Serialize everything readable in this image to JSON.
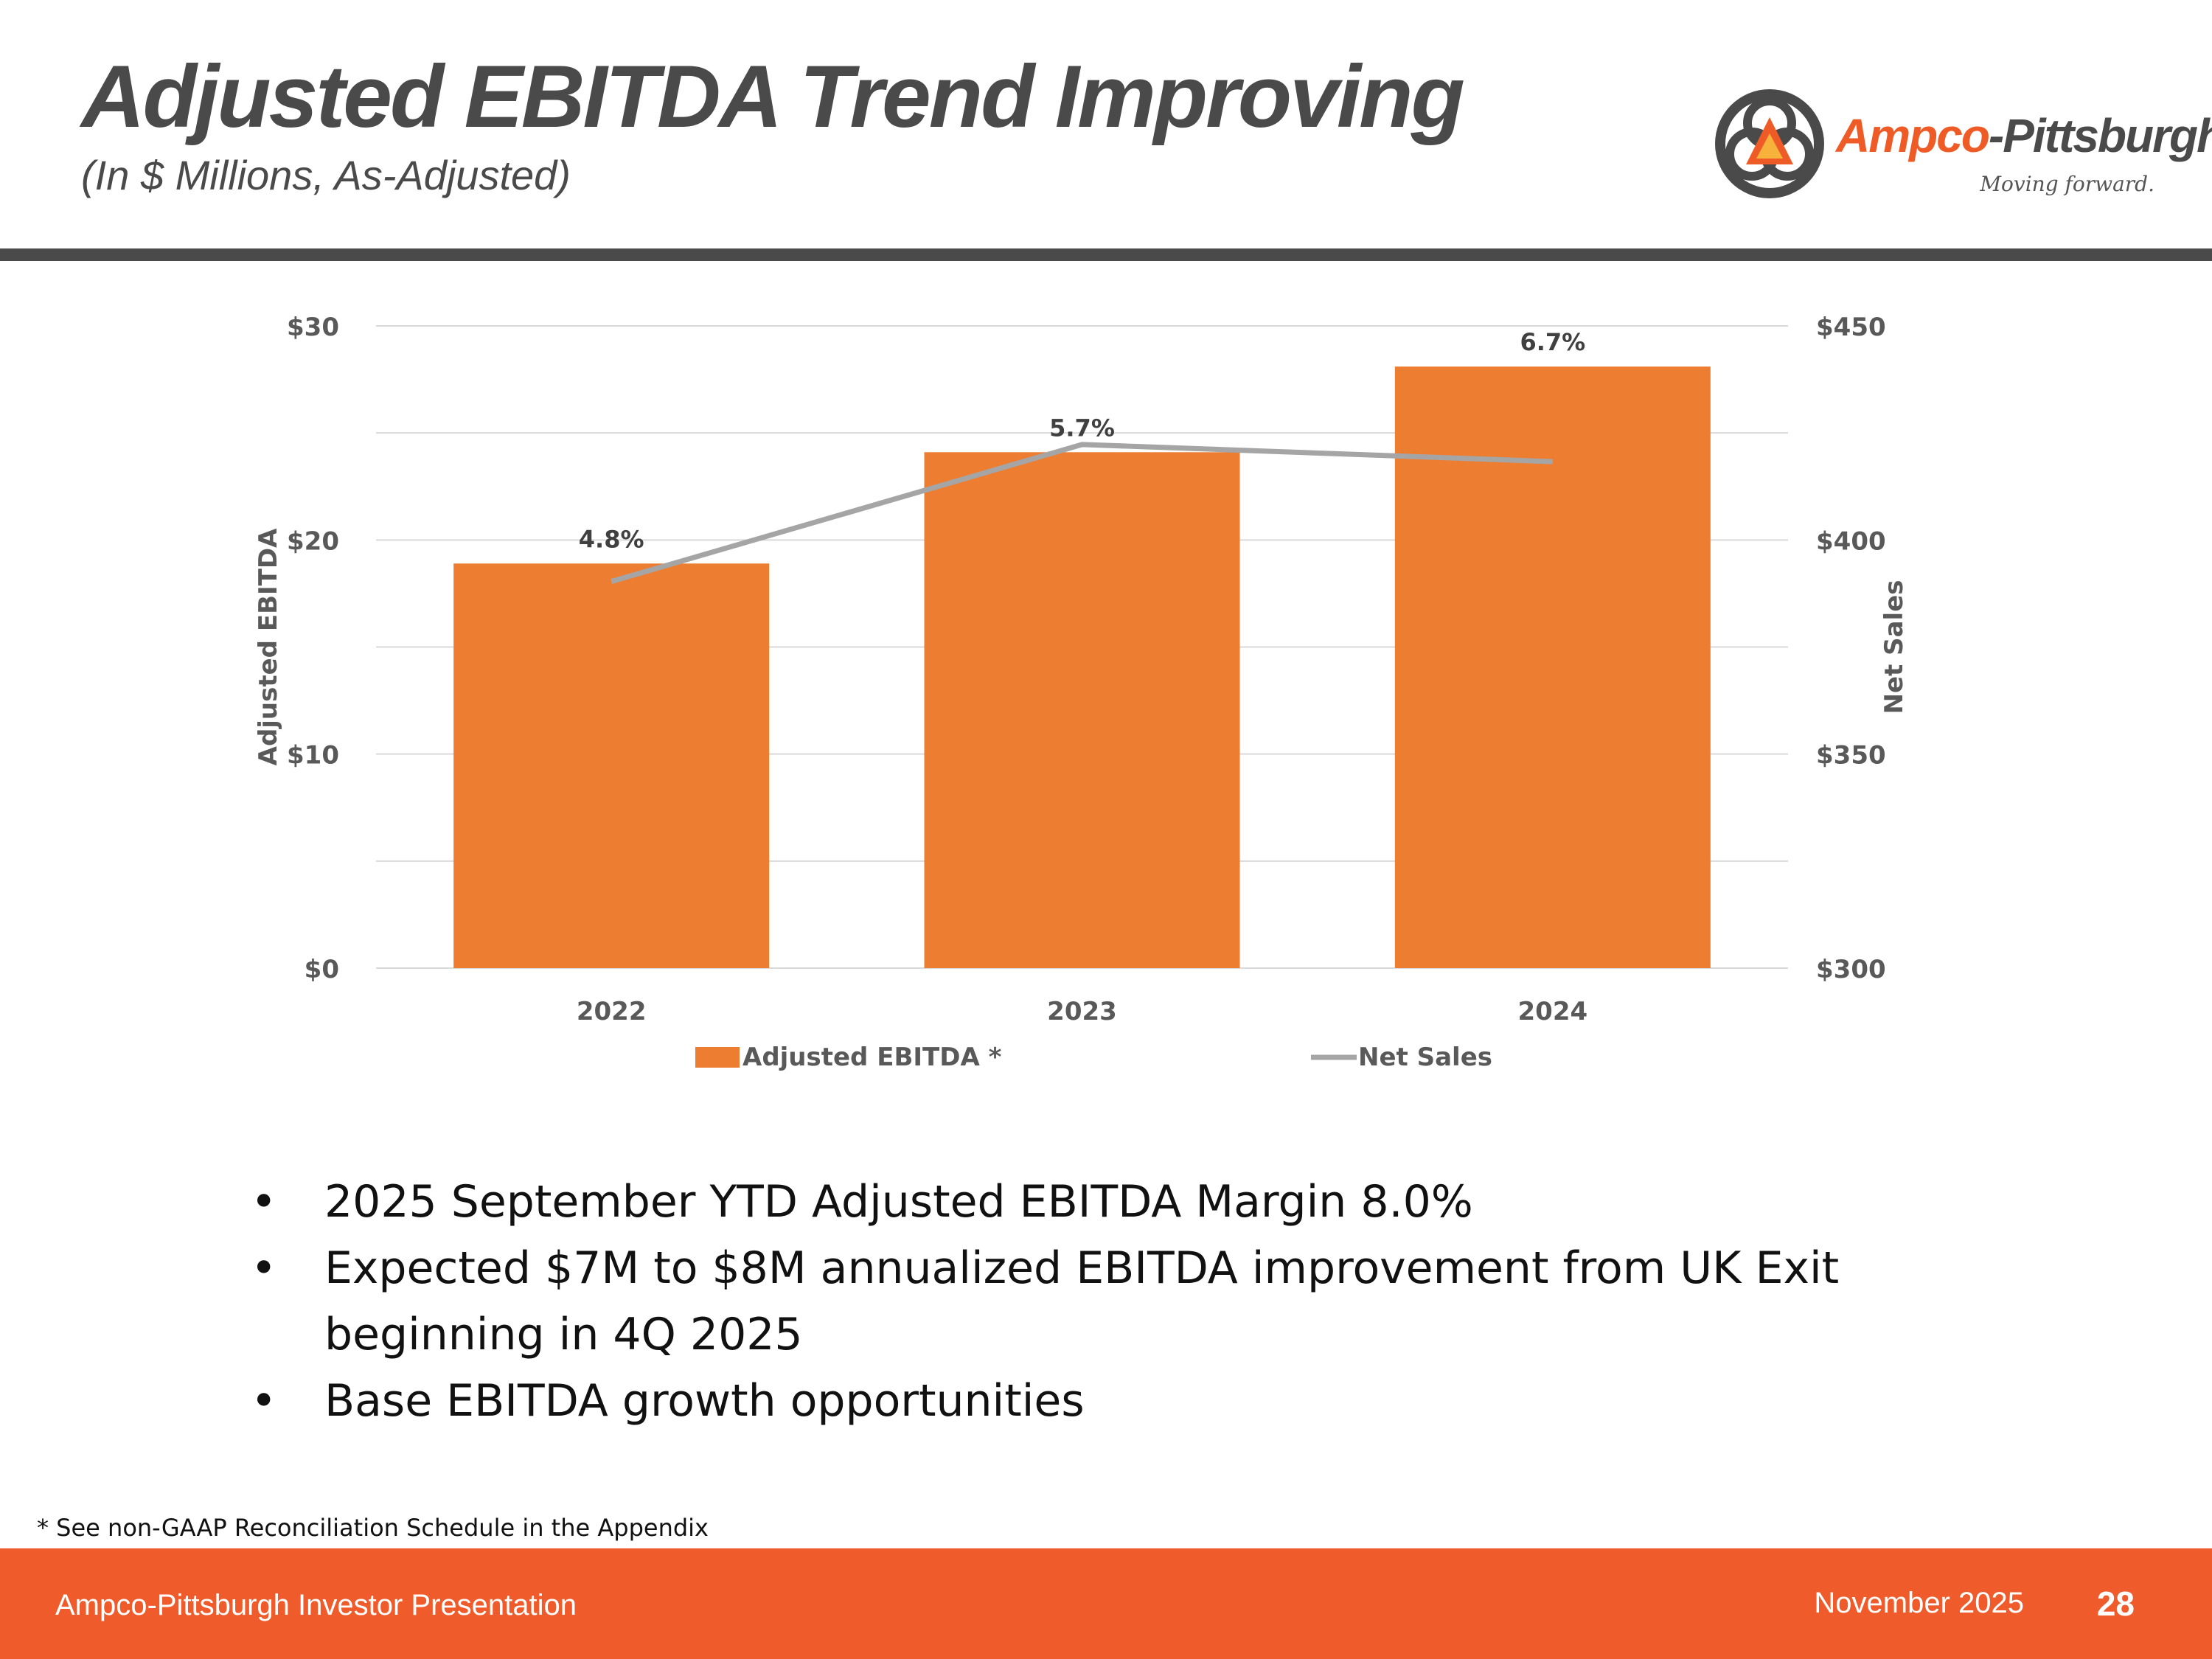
{
  "header": {
    "title": "Adjusted EBITDA Trend Improving",
    "subtitle": "(In $ Millions, As-Adjusted)"
  },
  "logo": {
    "name_part1": "Ampco",
    "name_part2": "-Pittsburgh",
    "tagline": "Moving forward."
  },
  "chart_data": {
    "type": "bar",
    "categories": [
      "2022",
      "2023",
      "2024"
    ],
    "series": [
      {
        "name": "Adjusted EBITDA *",
        "type": "bar",
        "axis": "left",
        "values": [
          18.9,
          24.1,
          28.1
        ],
        "labels": [
          "4.8%",
          "5.7%",
          "6.7%"
        ],
        "color": "#ed7d31"
      },
      {
        "name": "Net Sales",
        "type": "line",
        "axis": "right",
        "values": [
          390.3,
          422.3,
          418.3
        ],
        "color": "#a5a5a5"
      }
    ],
    "ylabel": "Adjusted EBITDA",
    "y2label": "Net Sales",
    "ylim": [
      0,
      30
    ],
    "y2lim": [
      300,
      450
    ],
    "yticks": [
      "$0",
      "$10",
      "$20",
      "$30"
    ],
    "y2ticks": [
      "$300",
      "$350",
      "$400",
      "$450"
    ],
    "grid": true,
    "legend": "bottom"
  },
  "bullets": [
    "2025 September YTD Adjusted EBITDA Margin 8.0%",
    "Expected $7M to $8M annualized EBITDA improvement from UK Exit beginning in 4Q 2025",
    "Base EBITDA growth opportunities"
  ],
  "bullet_symbol": "•",
  "footnote": "* See non-GAAP Reconciliation Schedule in the Appendix",
  "footer": {
    "left": "Ampco-Pittsburgh Investor Presentation",
    "date": "November 2025",
    "page": "28"
  },
  "colors": {
    "brand_orange": "#ef5b2b",
    "bar": "#ed7d31",
    "line": "#a5a5a5",
    "dark_gray": "#4a4a4a"
  }
}
